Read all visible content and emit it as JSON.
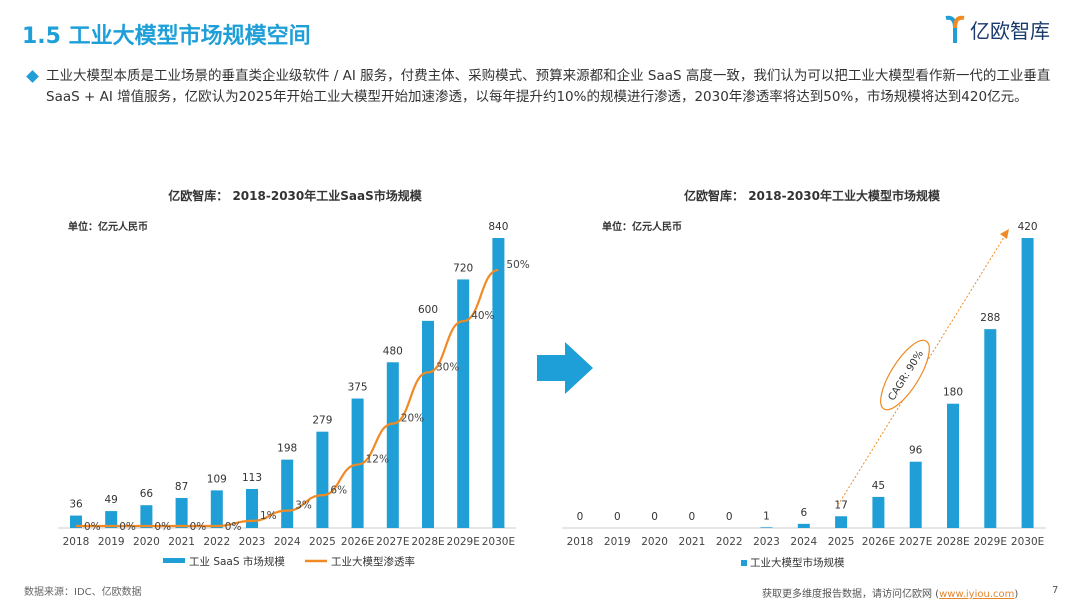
{
  "header": {
    "title": "1.5 工业大模型市场规模空间",
    "logo_text": "亿欧智库"
  },
  "bullet": "工业大模型本质是工业场景的垂直类企业级软件 / AI 服务，付费主体、采购模式、预算来源都和企业 SaaS 高度一致，我们认为可以把工业大模型看作新一代的工业垂直 SaaS + AI 增值服务，亿欧认为2025年开始工业大模型开始加速渗透，以每年提升约10%的规模进行渗透，2030年渗透率将达到50%，市场规模将达到420亿元。",
  "colors": {
    "accent": "#1e9fd8",
    "bar": "#1f9fd6",
    "line": "#f08a24"
  },
  "chart_data": [
    {
      "type": "bar+line",
      "title": "亿欧智库： 2018-2030年工业SaaS市场规模",
      "unit": "单位：亿元人民币",
      "categories": [
        "2018",
        "2019",
        "2020",
        "2021",
        "2022",
        "2023",
        "2024",
        "2025",
        "2026E",
        "2027E",
        "2028E",
        "2029E",
        "2030E"
      ],
      "series": [
        {
          "name": "工业 SaaS 市场规模",
          "type": "bar",
          "values": [
            36,
            49,
            66,
            87,
            109,
            113,
            198,
            279,
            375,
            480,
            600,
            720,
            840
          ]
        },
        {
          "name": "工业大模型渗透率",
          "type": "line",
          "values": [
            0,
            0,
            0,
            0,
            0,
            1,
            3,
            6,
            12,
            20,
            30,
            40,
            50
          ],
          "labels": [
            "0%",
            "0%",
            "0%",
            "0%",
            "0%",
            "1%",
            "3%",
            "6%",
            "12%",
            "20%",
            "30%",
            "40%",
            "50%"
          ]
        }
      ],
      "legend": "bottom"
    },
    {
      "type": "bar",
      "title": "亿欧智库： 2018-2030年工业大模型市场规模",
      "unit": "单位：亿元人民币",
      "categories": [
        "2018",
        "2019",
        "2020",
        "2021",
        "2022",
        "2023",
        "2024",
        "2025",
        "2026E",
        "2027E",
        "2028E",
        "2029E",
        "2030E"
      ],
      "series": [
        {
          "name": "工业大模型市场规模",
          "values": [
            0,
            0,
            0,
            0,
            0,
            1,
            6,
            17,
            45,
            96,
            180,
            288,
            420
          ]
        }
      ],
      "annotation": "CAGR: 90%",
      "legend": "bottom"
    }
  ],
  "footer": {
    "source": "数据来源：IDC、亿欧数据",
    "more": "获取更多维度报告数据，请访问亿欧网 (",
    "url": "www.iyiou.com",
    "more_end": ")",
    "page": "7"
  }
}
